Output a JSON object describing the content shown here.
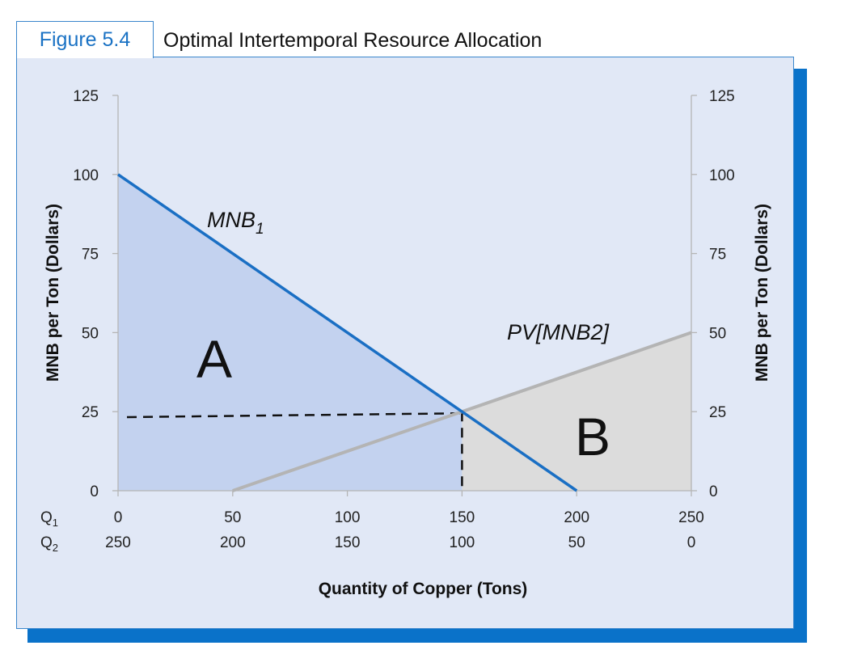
{
  "figure": {
    "label": "Figure 5.4",
    "title": "Optimal Intertemporal Resource Allocation"
  },
  "colors": {
    "frame_accent": "#1a72c4",
    "background": "#e1e8f6",
    "area_a": "#c3d2ef",
    "area_b": "#dcdcdc",
    "mnb1_line": "#1a6fc4",
    "mnb2_line": "#b4b4b4"
  },
  "chart_data": {
    "type": "line",
    "title": "Optimal Intertemporal Resource Allocation",
    "xlabel": "Quantity of Copper (Tons)",
    "ylabel_left": "MNB per Ton (Dollars)",
    "ylabel_right": "MNB per Ton (Dollars)",
    "xlim": [
      0,
      250
    ],
    "ylim": [
      0,
      125
    ],
    "y_ticks": [
      0,
      25,
      50,
      75,
      100,
      125
    ],
    "x_rows": [
      {
        "label": "Q",
        "sub": "1",
        "ticks": [
          "0",
          "50",
          "100",
          "150",
          "200",
          "250"
        ]
      },
      {
        "label": "Q",
        "sub": "2",
        "ticks": [
          "250",
          "200",
          "150",
          "100",
          "50",
          "0"
        ]
      }
    ],
    "series": [
      {
        "name": "MNB",
        "name_sub": "1",
        "x": [
          0,
          200
        ],
        "y": [
          100,
          0
        ]
      },
      {
        "name": "PV[MNB2]",
        "x": [
          50,
          250
        ],
        "y": [
          0,
          50
        ]
      }
    ],
    "equilibrium": {
      "x": 150,
      "y": 25
    },
    "regions": [
      {
        "label": "A"
      },
      {
        "label": "B"
      }
    ],
    "grid": false
  }
}
